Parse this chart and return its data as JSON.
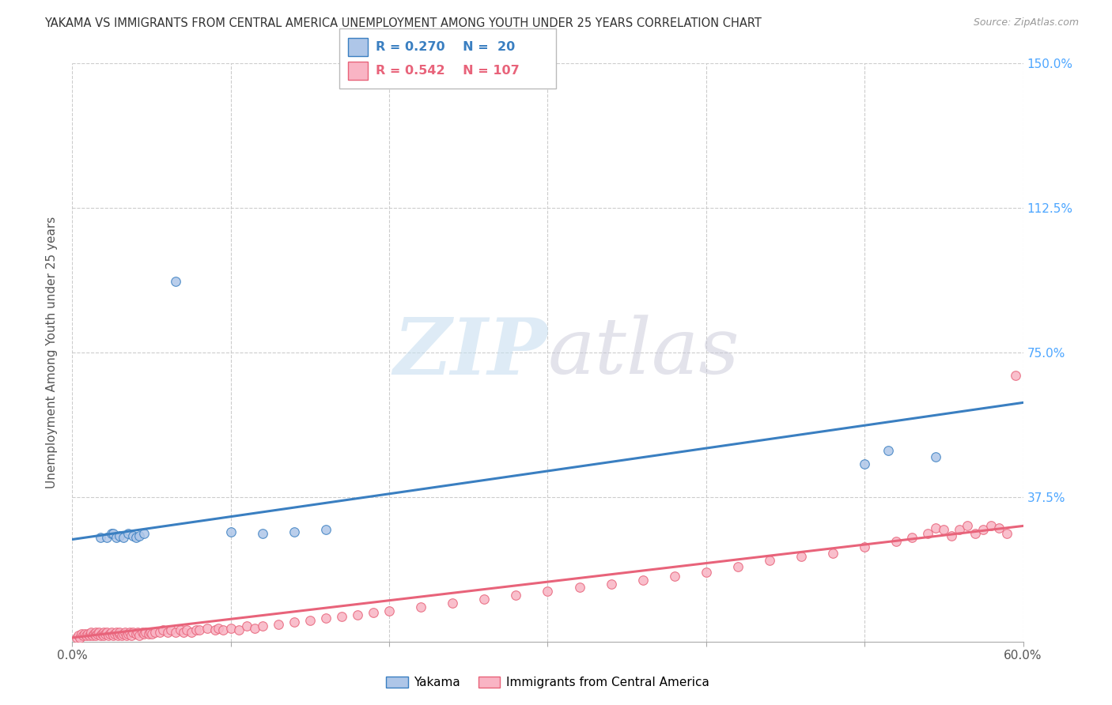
{
  "title": "YAKAMA VS IMMIGRANTS FROM CENTRAL AMERICA UNEMPLOYMENT AMONG YOUTH UNDER 25 YEARS CORRELATION CHART",
  "source": "Source: ZipAtlas.com",
  "ylabel": "Unemployment Among Youth under 25 years",
  "watermark_zip": "ZIP",
  "watermark_atlas": "atlas",
  "xlim": [
    0.0,
    0.6
  ],
  "ylim": [
    0.0,
    1.5
  ],
  "xtick_vals": [
    0.0,
    0.1,
    0.2,
    0.3,
    0.4,
    0.5,
    0.6
  ],
  "xtick_labels": [
    "0.0%",
    "",
    "",
    "",
    "",
    "",
    "60.0%"
  ],
  "ytick_vals": [
    0.0,
    0.375,
    0.75,
    1.125,
    1.5
  ],
  "ytick_labels_right": [
    "",
    "37.5%",
    "75.0%",
    "112.5%",
    "150.0%"
  ],
  "yakama_color": "#aec6e8",
  "immigrants_color": "#f9b4c4",
  "yakama_line_color": "#3a7fc1",
  "immigrants_line_color": "#e8637a",
  "yakama_edge_color": "#3a7fc1",
  "immigrants_edge_color": "#e8637a",
  "background_color": "#ffffff",
  "grid_color": "#cccccc",
  "title_color": "#333333",
  "axis_label_color": "#555555",
  "right_tick_color": "#4da6ff",
  "legend_box_color": "#eeeeee",
  "legend_border_color": "#cccccc",
  "legend_yakama_color": "#3a7fc1",
  "legend_immigrants_color": "#e8637a",
  "yakama_x": [
    0.018,
    0.022,
    0.025,
    0.026,
    0.028,
    0.03,
    0.032,
    0.035,
    0.038,
    0.04,
    0.042,
    0.045,
    0.065,
    0.1,
    0.12,
    0.14,
    0.16,
    0.5,
    0.515,
    0.545
  ],
  "yakama_y": [
    0.27,
    0.27,
    0.28,
    0.28,
    0.27,
    0.275,
    0.27,
    0.28,
    0.275,
    0.27,
    0.275,
    0.28,
    0.935,
    0.285,
    0.28,
    0.285,
    0.29,
    0.46,
    0.495,
    0.48
  ],
  "immigrants_x": [
    0.003,
    0.004,
    0.005,
    0.006,
    0.007,
    0.008,
    0.009,
    0.01,
    0.011,
    0.012,
    0.012,
    0.013,
    0.014,
    0.015,
    0.015,
    0.016,
    0.017,
    0.018,
    0.019,
    0.02,
    0.02,
    0.021,
    0.022,
    0.023,
    0.024,
    0.025,
    0.026,
    0.027,
    0.028,
    0.029,
    0.03,
    0.03,
    0.031,
    0.032,
    0.033,
    0.034,
    0.035,
    0.036,
    0.037,
    0.038,
    0.04,
    0.041,
    0.042,
    0.044,
    0.045,
    0.046,
    0.048,
    0.049,
    0.05,
    0.052,
    0.055,
    0.057,
    0.06,
    0.062,
    0.065,
    0.068,
    0.07,
    0.072,
    0.075,
    0.078,
    0.08,
    0.085,
    0.09,
    0.092,
    0.095,
    0.1,
    0.105,
    0.11,
    0.115,
    0.12,
    0.13,
    0.14,
    0.15,
    0.16,
    0.17,
    0.18,
    0.19,
    0.2,
    0.22,
    0.24,
    0.26,
    0.28,
    0.3,
    0.32,
    0.34,
    0.36,
    0.38,
    0.4,
    0.42,
    0.44,
    0.46,
    0.48,
    0.5,
    0.52,
    0.53,
    0.54,
    0.545,
    0.55,
    0.555,
    0.56,
    0.565,
    0.57,
    0.575,
    0.58,
    0.585,
    0.59,
    0.595
  ],
  "immigrants_y": [
    0.01,
    0.015,
    0.01,
    0.02,
    0.015,
    0.02,
    0.015,
    0.02,
    0.015,
    0.02,
    0.025,
    0.015,
    0.02,
    0.025,
    0.015,
    0.02,
    0.025,
    0.015,
    0.02,
    0.025,
    0.015,
    0.02,
    0.025,
    0.015,
    0.02,
    0.025,
    0.015,
    0.02,
    0.025,
    0.015,
    0.02,
    0.025,
    0.015,
    0.02,
    0.025,
    0.015,
    0.02,
    0.025,
    0.015,
    0.025,
    0.02,
    0.025,
    0.015,
    0.025,
    0.02,
    0.025,
    0.02,
    0.025,
    0.02,
    0.025,
    0.025,
    0.03,
    0.025,
    0.03,
    0.025,
    0.03,
    0.025,
    0.03,
    0.025,
    0.03,
    0.03,
    0.035,
    0.03,
    0.035,
    0.03,
    0.035,
    0.03,
    0.04,
    0.035,
    0.04,
    0.045,
    0.05,
    0.055,
    0.06,
    0.065,
    0.07,
    0.075,
    0.08,
    0.09,
    0.1,
    0.11,
    0.12,
    0.13,
    0.14,
    0.15,
    0.16,
    0.17,
    0.18,
    0.195,
    0.21,
    0.22,
    0.23,
    0.245,
    0.26,
    0.27,
    0.28,
    0.295,
    0.29,
    0.275,
    0.29,
    0.3,
    0.28,
    0.29,
    0.3,
    0.295,
    0.28,
    0.69
  ],
  "yakama_trend": [
    0.265,
    0.62
  ],
  "immigrants_trend_start": 0.01,
  "immigrants_trend_end": 0.3
}
